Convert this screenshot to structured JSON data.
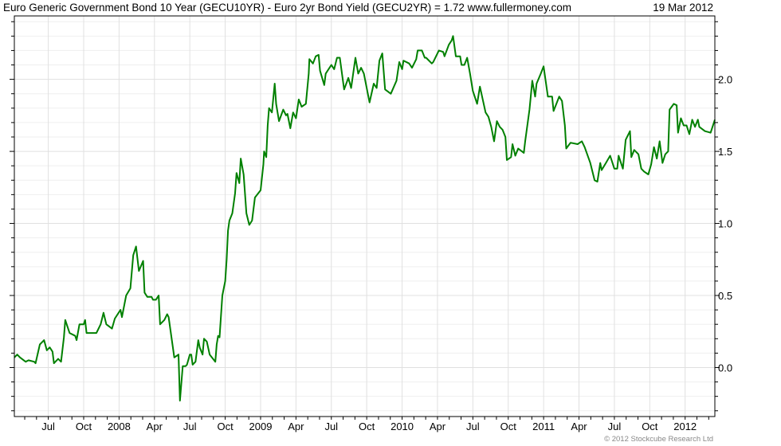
{
  "header": {
    "title": "Euro Generic Government Bond 10 Year (GECU10YR) - Euro 2yr Bond Yield (GECU2YR) = 1.72  www.fullermoney.com",
    "date": "19 Mar 2012"
  },
  "footer": {
    "copyright": "© 2012 Stockcube Research Ltd"
  },
  "colors": {
    "line": "#008000",
    "grid": "#e0e0e0",
    "grid_minor": "#efefef",
    "axis": "#000000"
  },
  "chart_data": {
    "type": "line",
    "title": "Euro Generic Government Bond 10 Year (GECU10YR) - Euro 2yr Bond Yield (GECU2YR) = 1.72",
    "xlabel": "",
    "ylabel": "",
    "xlim": [
      2007.26,
      2012.21
    ],
    "ylim": [
      -0.34,
      2.44
    ],
    "grid": true,
    "y_axis_position": "right",
    "y_ticks": [
      {
        "value": 0.0,
        "label": "0.0"
      },
      {
        "value": 0.5,
        "label": "0.5"
      },
      {
        "value": 1.0,
        "label": "1.0"
      },
      {
        "value": 1.5,
        "label": "1.5"
      },
      {
        "value": 2.0,
        "label": "2.0"
      }
    ],
    "x_ticks": [
      {
        "value": 2007.5,
        "label": "Jul"
      },
      {
        "value": 2007.75,
        "label": "Oct"
      },
      {
        "value": 2008.0,
        "label": "2008"
      },
      {
        "value": 2008.25,
        "label": "Apr"
      },
      {
        "value": 2008.5,
        "label": "Jul"
      },
      {
        "value": 2008.75,
        "label": "Oct"
      },
      {
        "value": 2009.0,
        "label": "2009"
      },
      {
        "value": 2009.25,
        "label": "Apr"
      },
      {
        "value": 2009.5,
        "label": "Jul"
      },
      {
        "value": 2009.75,
        "label": "Oct"
      },
      {
        "value": 2010.0,
        "label": "2010"
      },
      {
        "value": 2010.25,
        "label": "Apr"
      },
      {
        "value": 2010.5,
        "label": "Jul"
      },
      {
        "value": 2010.75,
        "label": "Oct"
      },
      {
        "value": 2011.0,
        "label": "2011"
      },
      {
        "value": 2011.25,
        "label": "Apr"
      },
      {
        "value": 2011.5,
        "label": "Jul"
      },
      {
        "value": 2011.75,
        "label": "Oct"
      },
      {
        "value": 2012.0,
        "label": "2012"
      }
    ],
    "series": [
      {
        "name": "GECU10YR - GECU2YR",
        "points": [
          [
            2007.26,
            0.07
          ],
          [
            2007.28,
            0.09
          ],
          [
            2007.3,
            0.07
          ],
          [
            2007.34,
            0.04
          ],
          [
            2007.36,
            0.05
          ],
          [
            2007.4,
            0.04
          ],
          [
            2007.41,
            0.03
          ],
          [
            2007.44,
            0.16
          ],
          [
            2007.47,
            0.19
          ],
          [
            2007.49,
            0.12
          ],
          [
            2007.51,
            0.14
          ],
          [
            2007.53,
            0.11
          ],
          [
            2007.54,
            0.03
          ],
          [
            2007.57,
            0.06
          ],
          [
            2007.59,
            0.04
          ],
          [
            2007.61,
            0.21
          ],
          [
            2007.62,
            0.33
          ],
          [
            2007.65,
            0.24
          ],
          [
            2007.69,
            0.22
          ],
          [
            2007.7,
            0.19
          ],
          [
            2007.72,
            0.3
          ],
          [
            2007.75,
            0.3
          ],
          [
            2007.76,
            0.33
          ],
          [
            2007.77,
            0.24
          ],
          [
            2007.84,
            0.24
          ],
          [
            2007.87,
            0.3
          ],
          [
            2007.89,
            0.38
          ],
          [
            2007.91,
            0.3
          ],
          [
            2007.95,
            0.27
          ],
          [
            2007.97,
            0.34
          ],
          [
            2008.01,
            0.4
          ],
          [
            2008.02,
            0.35
          ],
          [
            2008.05,
            0.5
          ],
          [
            2008.08,
            0.55
          ],
          [
            2008.1,
            0.78
          ],
          [
            2008.12,
            0.84
          ],
          [
            2008.14,
            0.67
          ],
          [
            2008.17,
            0.74
          ],
          [
            2008.18,
            0.52
          ],
          [
            2008.2,
            0.49
          ],
          [
            2008.23,
            0.49
          ],
          [
            2008.24,
            0.47
          ],
          [
            2008.26,
            0.47
          ],
          [
            2008.28,
            0.5
          ],
          [
            2008.29,
            0.3
          ],
          [
            2008.32,
            0.33
          ],
          [
            2008.34,
            0.37
          ],
          [
            2008.35,
            0.35
          ],
          [
            2008.39,
            0.07
          ],
          [
            2008.42,
            0.09
          ],
          [
            2008.43,
            -0.23
          ],
          [
            2008.45,
            0.01
          ],
          [
            2008.47,
            0.01
          ],
          [
            2008.48,
            0.02
          ],
          [
            2008.5,
            0.09
          ],
          [
            2008.51,
            0.09
          ],
          [
            2008.52,
            0.02
          ],
          [
            2008.54,
            0.04
          ],
          [
            2008.56,
            0.19
          ],
          [
            2008.57,
            0.14
          ],
          [
            2008.59,
            0.09
          ],
          [
            2008.6,
            0.2
          ],
          [
            2008.62,
            0.18
          ],
          [
            2008.64,
            0.09
          ],
          [
            2008.68,
            0.04
          ],
          [
            2008.69,
            0.16
          ],
          [
            2008.7,
            0.22
          ],
          [
            2008.71,
            0.21
          ],
          [
            2008.72,
            0.36
          ],
          [
            2008.73,
            0.5
          ],
          [
            2008.75,
            0.6
          ],
          [
            2008.76,
            0.75
          ],
          [
            2008.77,
            0.95
          ],
          [
            2008.78,
            1.02
          ],
          [
            2008.8,
            1.07
          ],
          [
            2008.82,
            1.21
          ],
          [
            2008.83,
            1.35
          ],
          [
            2008.85,
            1.28
          ],
          [
            2008.86,
            1.45
          ],
          [
            2008.88,
            1.34
          ],
          [
            2008.9,
            1.07
          ],
          [
            2008.92,
            0.99
          ],
          [
            2008.94,
            1.02
          ],
          [
            2008.96,
            1.18
          ],
          [
            2009.0,
            1.23
          ],
          [
            2009.02,
            1.41
          ],
          [
            2009.025,
            1.5
          ],
          [
            2009.04,
            1.46
          ],
          [
            2009.05,
            1.68
          ],
          [
            2009.06,
            1.8
          ],
          [
            2009.08,
            1.77
          ],
          [
            2009.1,
            1.97
          ],
          [
            2009.11,
            1.83
          ],
          [
            2009.13,
            1.71
          ],
          [
            2009.16,
            1.79
          ],
          [
            2009.18,
            1.75
          ],
          [
            2009.19,
            1.76
          ],
          [
            2009.21,
            1.66
          ],
          [
            2009.23,
            1.77
          ],
          [
            2009.25,
            1.73
          ],
          [
            2009.27,
            1.86
          ],
          [
            2009.29,
            1.81
          ],
          [
            2009.32,
            1.83
          ],
          [
            2009.34,
            2.04
          ],
          [
            2009.345,
            2.14
          ],
          [
            2009.37,
            2.11
          ],
          [
            2009.39,
            2.16
          ],
          [
            2009.41,
            2.17
          ],
          [
            2009.42,
            2.06
          ],
          [
            2009.45,
            1.96
          ],
          [
            2009.46,
            2.04
          ],
          [
            2009.5,
            2.1
          ],
          [
            2009.52,
            2.07
          ],
          [
            2009.54,
            2.15
          ],
          [
            2009.56,
            2.15
          ],
          [
            2009.59,
            1.93
          ],
          [
            2009.62,
            2.01
          ],
          [
            2009.64,
            1.94
          ],
          [
            2009.67,
            2.15
          ],
          [
            2009.69,
            2.04
          ],
          [
            2009.71,
            2.08
          ],
          [
            2009.73,
            2.04
          ],
          [
            2009.77,
            1.84
          ],
          [
            2009.8,
            1.97
          ],
          [
            2009.82,
            1.94
          ],
          [
            2009.84,
            2.13
          ],
          [
            2009.86,
            2.18
          ],
          [
            2009.88,
            1.93
          ],
          [
            2009.92,
            1.9
          ],
          [
            2009.96,
            1.99
          ],
          [
            2009.98,
            2.12
          ],
          [
            2010.0,
            2.07
          ],
          [
            2010.01,
            2.13
          ],
          [
            2010.05,
            2.11
          ],
          [
            2010.07,
            2.08
          ],
          [
            2010.1,
            2.14
          ],
          [
            2010.11,
            2.2
          ],
          [
            2010.14,
            2.2
          ],
          [
            2010.16,
            2.15
          ],
          [
            2010.17,
            2.15
          ],
          [
            2010.21,
            2.11
          ],
          [
            2010.22,
            2.12
          ],
          [
            2010.26,
            2.2
          ],
          [
            2010.29,
            2.19
          ],
          [
            2010.3,
            2.16
          ],
          [
            2010.33,
            2.24
          ],
          [
            2010.35,
            2.27
          ],
          [
            2010.36,
            2.3
          ],
          [
            2010.38,
            2.16
          ],
          [
            2010.41,
            2.16
          ],
          [
            2010.42,
            2.1
          ],
          [
            2010.44,
            2.1
          ],
          [
            2010.46,
            2.15
          ],
          [
            2010.48,
            2.04
          ],
          [
            2010.5,
            1.92
          ],
          [
            2010.53,
            1.83
          ],
          [
            2010.55,
            1.95
          ],
          [
            2010.59,
            1.77
          ],
          [
            2010.61,
            1.74
          ],
          [
            2010.63,
            1.67
          ],
          [
            2010.65,
            1.57
          ],
          [
            2010.67,
            1.71
          ],
          [
            2010.69,
            1.67
          ],
          [
            2010.71,
            1.65
          ],
          [
            2010.73,
            1.6
          ],
          [
            2010.74,
            1.44
          ],
          [
            2010.77,
            1.46
          ],
          [
            2010.78,
            1.55
          ],
          [
            2010.8,
            1.47
          ],
          [
            2010.82,
            1.52
          ],
          [
            2010.86,
            1.49
          ],
          [
            2010.87,
            1.57
          ],
          [
            2010.9,
            1.79
          ],
          [
            2010.92,
            1.99
          ],
          [
            2010.94,
            1.88
          ],
          [
            2010.95,
            1.97
          ],
          [
            2010.98,
            2.04
          ],
          [
            2011.0,
            2.09
          ],
          [
            2011.01,
            2.02
          ],
          [
            2011.03,
            1.88
          ],
          [
            2011.06,
            1.88
          ],
          [
            2011.07,
            1.78
          ],
          [
            2011.11,
            1.88
          ],
          [
            2011.13,
            1.85
          ],
          [
            2011.15,
            1.68
          ],
          [
            2011.16,
            1.52
          ],
          [
            2011.19,
            1.56
          ],
          [
            2011.24,
            1.55
          ],
          [
            2011.27,
            1.57
          ],
          [
            2011.29,
            1.53
          ],
          [
            2011.33,
            1.42
          ],
          [
            2011.36,
            1.3
          ],
          [
            2011.38,
            1.29
          ],
          [
            2011.4,
            1.42
          ],
          [
            2011.41,
            1.37
          ],
          [
            2011.44,
            1.42
          ],
          [
            2011.47,
            1.47
          ],
          [
            2011.5,
            1.38
          ],
          [
            2011.52,
            1.38
          ],
          [
            2011.53,
            1.47
          ],
          [
            2011.56,
            1.38
          ],
          [
            2011.58,
            1.58
          ],
          [
            2011.61,
            1.64
          ],
          [
            2011.62,
            1.46
          ],
          [
            2011.64,
            1.51
          ],
          [
            2011.67,
            1.48
          ],
          [
            2011.69,
            1.38
          ],
          [
            2011.71,
            1.36
          ],
          [
            2011.74,
            1.34
          ],
          [
            2011.76,
            1.41
          ],
          [
            2011.78,
            1.53
          ],
          [
            2011.8,
            1.45
          ],
          [
            2011.82,
            1.57
          ],
          [
            2011.84,
            1.42
          ],
          [
            2011.86,
            1.48
          ],
          [
            2011.88,
            1.5
          ],
          [
            2011.89,
            1.79
          ],
          [
            2011.92,
            1.83
          ],
          [
            2011.94,
            1.82
          ],
          [
            2011.95,
            1.63
          ],
          [
            2011.97,
            1.73
          ],
          [
            2011.99,
            1.68
          ],
          [
            2012.01,
            1.68
          ],
          [
            2012.03,
            1.62
          ],
          [
            2012.05,
            1.72
          ],
          [
            2012.07,
            1.67
          ],
          [
            2012.09,
            1.72
          ],
          [
            2012.1,
            1.67
          ],
          [
            2012.14,
            1.64
          ],
          [
            2012.18,
            1.63
          ],
          [
            2012.21,
            1.72
          ]
        ]
      }
    ]
  }
}
